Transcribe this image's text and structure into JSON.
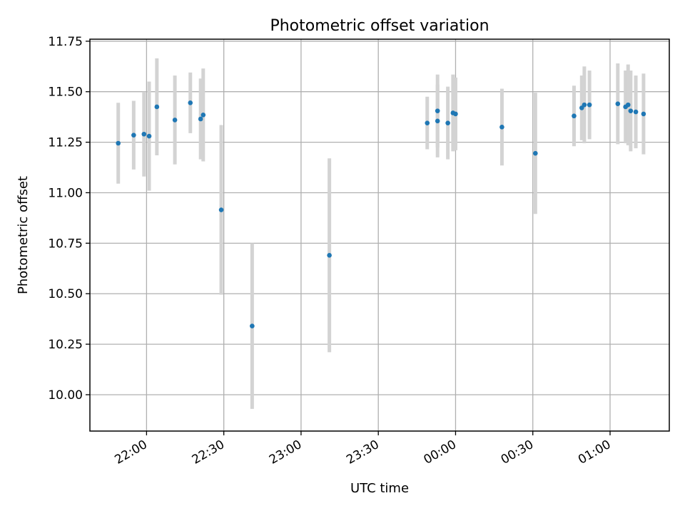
{
  "chart_data": {
    "type": "scatter",
    "title": "Photometric offset variation",
    "xlabel": "UTC time",
    "ylabel": "Photometric offset",
    "xlim": [
      "21:38",
      "01:23"
    ],
    "ylim": [
      9.82,
      11.76
    ],
    "x_ticks": [
      "22:00",
      "22:30",
      "23:00",
      "23:30",
      "00:00",
      "00:30",
      "01:00"
    ],
    "y_ticks": [
      10.0,
      10.25,
      10.5,
      10.75,
      11.0,
      11.25,
      11.5,
      11.75
    ],
    "y_tick_labels": [
      "10.00",
      "10.25",
      "10.50",
      "10.75",
      "11.00",
      "11.25",
      "11.50",
      "11.75"
    ],
    "grid": true,
    "colors": {
      "points": "#1f77b4",
      "errorbars": "#d3d3d3",
      "grid": "#b0b0b0"
    },
    "series": [
      {
        "x": [
          "21:49",
          "21:55",
          "21:59",
          "22:01",
          "22:04",
          "22:11",
          "22:17",
          "22:21",
          "22:22",
          "22:29",
          "22:41",
          "23:11",
          "23:49",
          "23:53",
          "23:53",
          "23:57",
          "23:59",
          "00:00",
          "00:18",
          "00:31",
          "00:46",
          "00:49",
          "00:50",
          "00:52",
          "01:03",
          "01:06",
          "01:07",
          "01:08",
          "01:10",
          "01:13"
        ],
        "y": [
          11.245,
          11.285,
          11.29,
          11.28,
          11.425,
          11.36,
          11.445,
          11.365,
          11.385,
          10.915,
          10.34,
          10.69,
          11.345,
          11.405,
          11.355,
          11.345,
          11.395,
          11.39,
          11.325,
          11.195,
          11.38,
          11.42,
          11.435,
          11.435,
          11.44,
          11.425,
          11.435,
          11.405,
          11.4,
          11.39
        ],
        "err": [
          0.2,
          0.17,
          0.21,
          0.27,
          0.24,
          0.22,
          0.15,
          0.2,
          0.23,
          0.42,
          0.41,
          0.48,
          0.13,
          0.18,
          0.18,
          0.18,
          0.19,
          0.18,
          0.19,
          0.3,
          0.15,
          0.16,
          0.19,
          0.17,
          0.2,
          0.18,
          0.2,
          0.2,
          0.18,
          0.2
        ]
      }
    ]
  }
}
